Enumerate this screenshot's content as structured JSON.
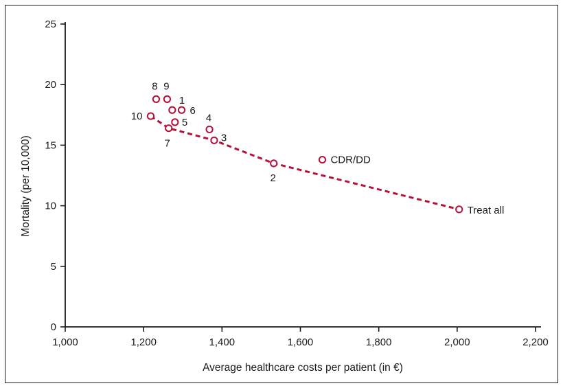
{
  "chart_data": {
    "type": "scatter",
    "title": "",
    "xlabel": "Average healthcare costs per patient (in €)",
    "ylabel": "Mortality (per 10,000)",
    "xlim": [
      1000,
      2200
    ],
    "ylim": [
      0,
      25
    ],
    "x_ticks": [
      1000,
      1200,
      1400,
      1600,
      1800,
      2000,
      2200
    ],
    "x_tick_labels": [
      "1,000",
      "1,200",
      "1,400",
      "1,600",
      "1,800",
      "2,000",
      "2,200"
    ],
    "y_ticks": [
      0,
      5,
      10,
      15,
      20,
      25
    ],
    "y_tick_labels": [
      "0",
      "5",
      "10",
      "15",
      "20",
      "25"
    ],
    "grid": false,
    "marker_color": "#b5123a",
    "points": [
      {
        "label": "10",
        "x": 1218,
        "y": 17.4
      },
      {
        "label": "8",
        "x": 1232,
        "y": 18.8
      },
      {
        "label": "9",
        "x": 1260,
        "y": 18.8
      },
      {
        "label": "1",
        "x": 1273,
        "y": 17.9
      },
      {
        "label": "6",
        "x": 1297,
        "y": 17.9
      },
      {
        "label": "5",
        "x": 1280,
        "y": 16.9
      },
      {
        "label": "7",
        "x": 1264,
        "y": 16.4
      },
      {
        "label": "4",
        "x": 1368,
        "y": 16.3
      },
      {
        "label": "3",
        "x": 1380,
        "y": 15.4
      },
      {
        "label": "2",
        "x": 1532,
        "y": 13.5
      },
      {
        "label": "CDR/DD",
        "x": 1656,
        "y": 13.8
      },
      {
        "label": "Treat all",
        "x": 2005,
        "y": 9.7
      }
    ],
    "frontier": {
      "style": "dashed",
      "color": "#b5123a",
      "points": [
        {
          "x": 1218,
          "y": 17.4
        },
        {
          "x": 1264,
          "y": 16.4
        },
        {
          "x": 1380,
          "y": 15.4
        },
        {
          "x": 1532,
          "y": 13.5
        },
        {
          "x": 2005,
          "y": 9.7
        }
      ]
    }
  }
}
